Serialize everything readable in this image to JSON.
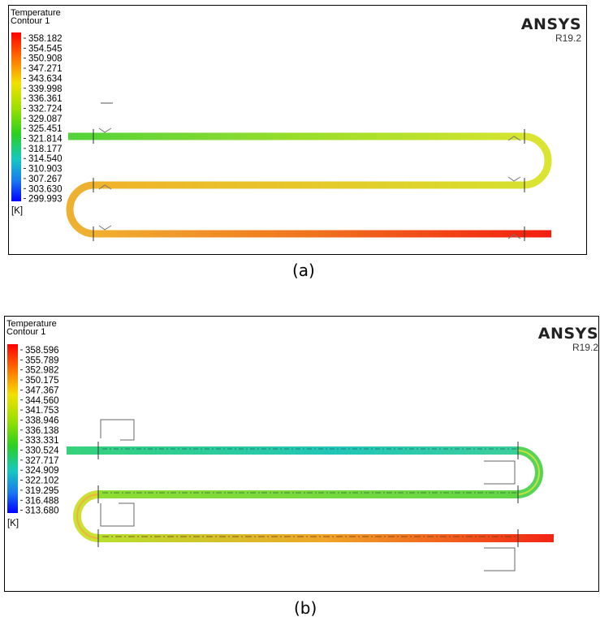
{
  "panel_a": {
    "legend_title": "Temperature",
    "legend_subtitle": "Contour 1",
    "legend_unit": "[K]",
    "legend_values": [
      "358.182",
      "354.545",
      "350.908",
      "347.271",
      "343.634",
      "339.998",
      "336.361",
      "332.724",
      "329.087",
      "325.451",
      "321.814",
      "318.177",
      "314.540",
      "310.903",
      "307.267",
      "303.630",
      "299.993"
    ],
    "brand": "ANSYS",
    "version": "R19.2",
    "caption": "(a)"
  },
  "panel_b": {
    "legend_title": "Temperature",
    "legend_subtitle": "Contour 1",
    "legend_unit": "[K]",
    "legend_values": [
      "358.596",
      "355.789",
      "352.982",
      "350.175",
      "347.367",
      "344.560",
      "341.753",
      "338.946",
      "336.138",
      "333.331",
      "330.524",
      "327.717",
      "324.909",
      "322.102",
      "319.295",
      "316.488",
      "313.680"
    ],
    "brand": "ANSYS",
    "version": "R19.2",
    "caption": "(b)"
  },
  "colormap": [
    "#ff0000",
    "#ff6a00",
    "#ffb300",
    "#e8e800",
    "#8fe000",
    "#2bd21c",
    "#18c8c8",
    "#1a7cf0",
    "#0000ff"
  ]
}
